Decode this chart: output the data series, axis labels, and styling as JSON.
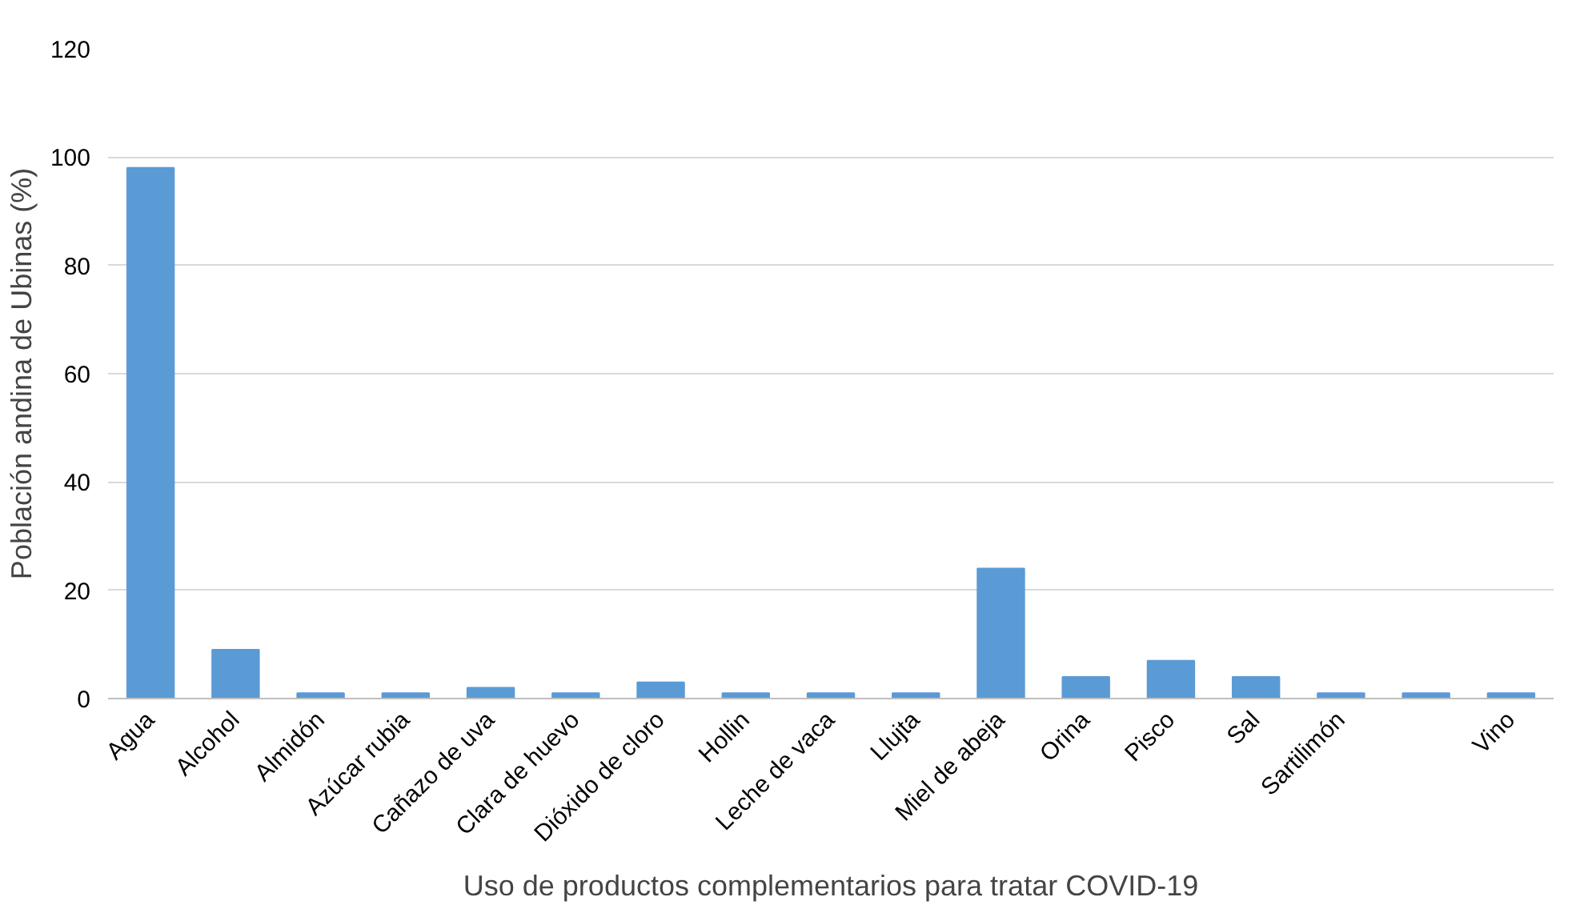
{
  "chart_data": {
    "type": "bar",
    "xlabel": "Uso de productos complementarios para tratar COVID-19",
    "ylabel": "Población andina de Ubinas (%)",
    "categories": [
      "Agua",
      "Alcohol",
      "Almidón",
      "Azúcar rubia",
      "Cañazo de uva",
      "Clara de huevo",
      "Dióxido de cloro",
      "Hollin",
      "Leche de vaca",
      "Llujta",
      "Miel de abeja",
      "Orina",
      "Pisco",
      "Sal",
      "Sartilimón",
      null,
      "Vino"
    ],
    "values": [
      98,
      9,
      1,
      1,
      2,
      1,
      3,
      1,
      1,
      1,
      24,
      4,
      7,
      4,
      1,
      1,
      1
    ],
    "color": "#5b9bd5",
    "ylim": [
      0,
      120
    ],
    "yticks": [
      0,
      20,
      40,
      60,
      80,
      100,
      120
    ],
    "grid": "y"
  }
}
